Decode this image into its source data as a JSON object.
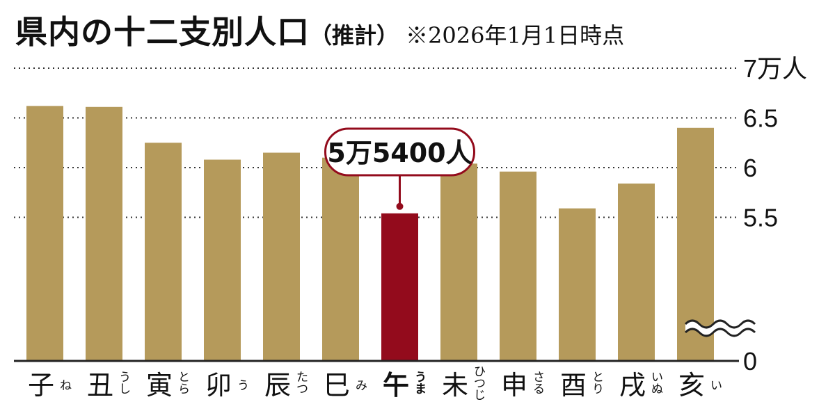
{
  "title": {
    "main": "県内の十二支別人口",
    "sub": "（推計）",
    "note": "※2026年1月1日時点"
  },
  "chart_data": {
    "type": "bar",
    "title": "県内の十二支別人口（推計）",
    "note": "※2026年1月1日時点",
    "categories": [
      "子",
      "丑",
      "寅",
      "卯",
      "辰",
      "巳",
      "午",
      "未",
      "申",
      "酉",
      "戌",
      "亥"
    ],
    "readings": [
      "ね",
      "うし",
      "とら",
      "う",
      "たつ",
      "み",
      "うま",
      "ひつじ",
      "さる",
      "とり",
      "いぬ",
      "い"
    ],
    "values": [
      66200,
      66100,
      62500,
      60800,
      61500,
      61000,
      55400,
      60400,
      59600,
      55900,
      58400,
      64000
    ],
    "highlight_index": 6,
    "callout": "5万5400人",
    "ylim": [
      50000,
      70000
    ],
    "axis_break": true,
    "y_ticks": [
      {
        "value": 0,
        "label": "0"
      },
      {
        "value": 55000,
        "label": "5.5"
      },
      {
        "value": 60000,
        "label": "6"
      },
      {
        "value": 65000,
        "label": "6.5"
      },
      {
        "value": 70000,
        "label": "7万人"
      }
    ],
    "grid": true,
    "legend": "none",
    "colors": {
      "bar": "#b59a5b",
      "highlight": "#930b1c",
      "text": "#111111",
      "grid": "#333333"
    }
  }
}
